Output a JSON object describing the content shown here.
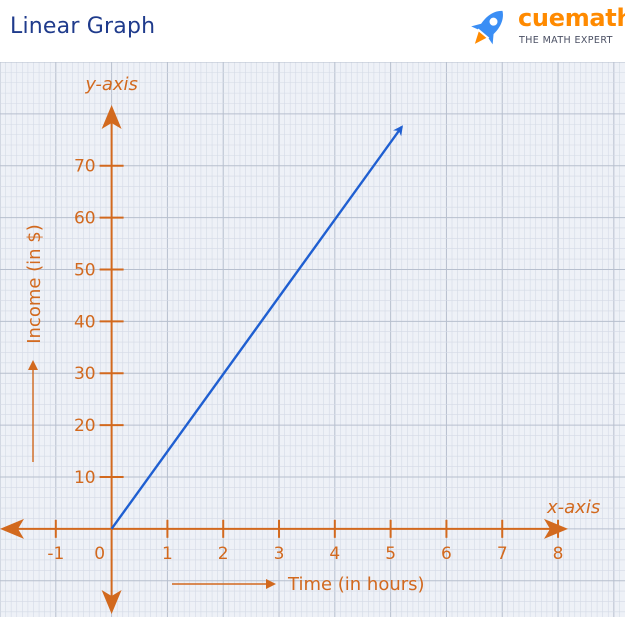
{
  "page": {
    "title": "Linear Graph",
    "logo": {
      "name": "cuemath",
      "tagline": "THE MATH EXPERT"
    }
  },
  "colors": {
    "axis": "#d2691e",
    "line": "#1f5fd1",
    "grid_minor": "#d4dae6",
    "grid_major": "#b7bfce",
    "paper": "#eef1f7",
    "title": "#1f3b8c",
    "logo_orange": "#ff8a00",
    "logo_blue": "#3a8ef5"
  },
  "chart_data": {
    "type": "line",
    "title": "Linear Graph",
    "xlabel": "Time (in hours)",
    "ylabel": "Income (in $)",
    "x_axis_name": "x-axis",
    "y_axis_name": "y-axis",
    "x_ticks": [
      -1,
      0,
      1,
      2,
      3,
      4,
      5,
      6,
      7,
      8
    ],
    "y_ticks": [
      10,
      20,
      30,
      40,
      50,
      60,
      70
    ],
    "x_tick_labels": [
      "-1",
      "0",
      "1",
      "2",
      "3",
      "4",
      "5",
      "6",
      "7",
      "8"
    ],
    "y_tick_labels": [
      "10",
      "20",
      "30",
      "40",
      "50",
      "60",
      "70"
    ],
    "xlim": [
      -2,
      9.2
    ],
    "ylim": [
      -17,
      90
    ],
    "grid": true,
    "series": [
      {
        "x": [
          0,
          5.2
        ],
        "y": [
          0,
          77.5
        ]
      }
    ]
  }
}
